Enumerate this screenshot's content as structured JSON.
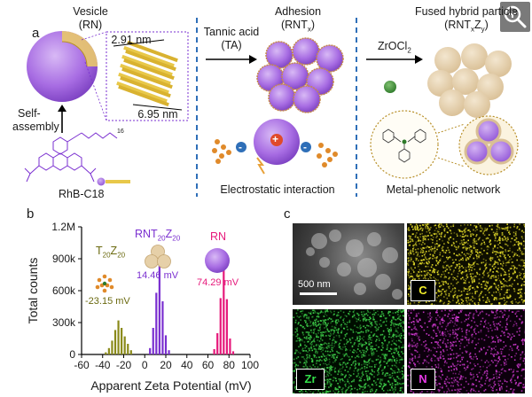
{
  "panel_a": {
    "letter": "a",
    "vesicle_title": "Vesicle",
    "vesicle_sub": "(RN)",
    "dim_top": "2.91 nm",
    "dim_bottom": "6.95 nm",
    "self_assembly_1": "Self-",
    "self_assembly_2": "assembly",
    "rhb_label": "RhB-C18",
    "chain_subscript": "16",
    "tannic_1": "Tannic acid",
    "tannic_2": "(TA)",
    "adhesion_title": "Adhesion",
    "adhesion_sub_main": "(RNT",
    "adhesion_sub_x": "x",
    "adhesion_sub_close": ")",
    "zr_label_main": "ZrOCl",
    "zr_label_sub": "2",
    "fused_title": "Fused hybrid particle",
    "fused_sub_main": "(RNT",
    "fused_sub_x": "x",
    "fused_sub_z": "Z",
    "fused_sub_y": "y",
    "fused_sub_close": ")",
    "electrostatic": "Electrostatic interaction",
    "mpn": "Metal-phenolic network",
    "plus_sign": "+",
    "minus_sign": "-"
  },
  "panel_b": {
    "letter": "b",
    "label_t_main": "T",
    "label_t_sub1": "20",
    "label_t_mid": "Z",
    "label_t_sub2": "20",
    "label_rnt_main": "RNT",
    "label_rnt_sub1": "20",
    "label_rnt_mid": "Z",
    "label_rnt_sub2": "20",
    "label_rn": "RN",
    "val_t": "-23.15 mV",
    "val_rnt": "14.46 mV",
    "val_rn": "74.29 mV"
  },
  "panel_c": {
    "letter": "c",
    "scale_bar": "500 nm",
    "labels": [
      "C",
      "Zr",
      "N"
    ]
  },
  "colors": {
    "olive": "#8a8a1a",
    "purple": "#7a2fd0",
    "pink": "#e6197b",
    "dashed": "#2f6fb8",
    "vesicle": "#b07ee6"
  },
  "chart_data": {
    "type": "bar",
    "xlabel": "Apparent Zeta Potential (mV)",
    "ylabel": "Total counts",
    "xlim": [
      -60,
      100
    ],
    "ylim": [
      0,
      1200000
    ],
    "x_ticks": [
      -60,
      -40,
      -20,
      0,
      20,
      40,
      60,
      80,
      100
    ],
    "y_ticks": [
      0,
      300000,
      600000,
      900000,
      1200000
    ],
    "y_tick_labels": [
      "0",
      "300k",
      "600k",
      "900k",
      "1.2M"
    ],
    "series": [
      {
        "name": "T20Z20",
        "color": "#8a8a1a",
        "x": [
          -37,
          -34,
          -31,
          -28,
          -25,
          -22,
          -19,
          -16,
          -13
        ],
        "values": [
          20000,
          60000,
          130000,
          230000,
          320000,
          250000,
          170000,
          100000,
          40000
        ]
      },
      {
        "name": "RNT20Z20",
        "color": "#7a2fd0",
        "x": [
          5,
          8,
          11,
          14,
          17,
          20,
          23
        ],
        "values": [
          60000,
          250000,
          580000,
          840000,
          500000,
          180000,
          40000
        ]
      },
      {
        "name": "RN",
        "color": "#e6197b",
        "x": [
          66,
          69,
          72,
          75,
          78,
          81,
          84
        ],
        "values": [
          50000,
          200000,
          530000,
          800000,
          520000,
          150000,
          30000
        ]
      }
    ]
  }
}
